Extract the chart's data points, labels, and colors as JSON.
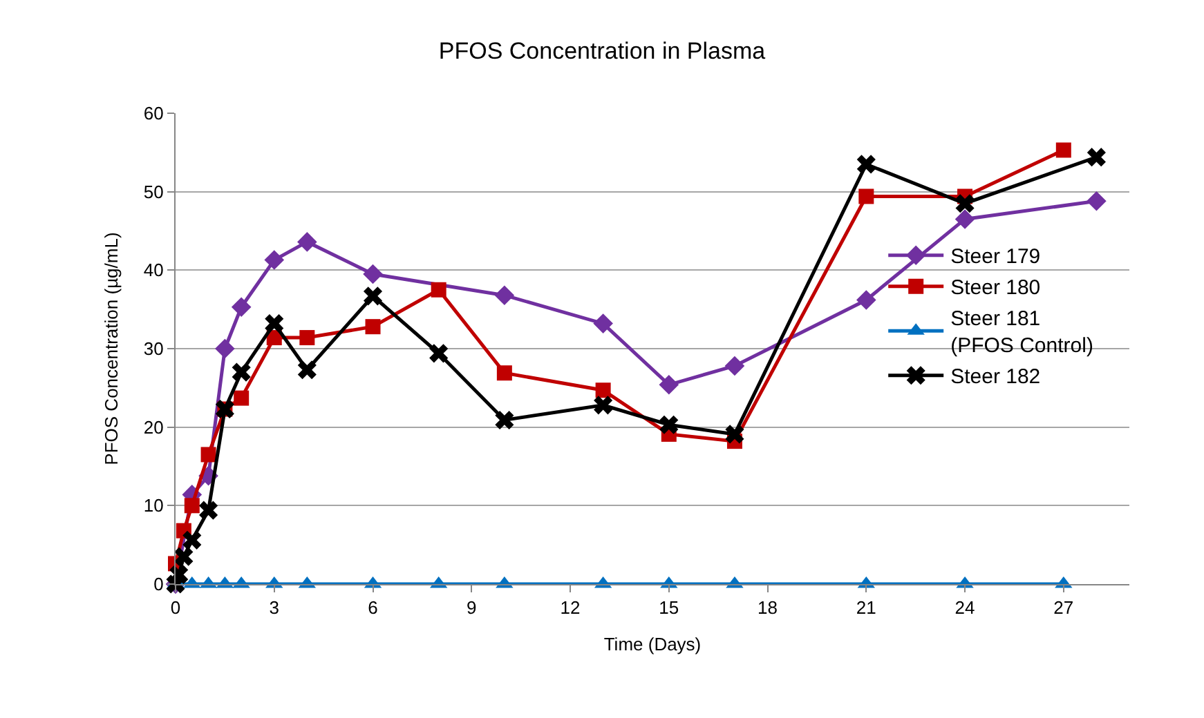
{
  "chart_data": {
    "type": "line",
    "title": "PFOS Concentration in Plasma",
    "xlabel": "Time (Days)",
    "ylabel": "PFOS Concentration (µg/mL)",
    "xlim": [
      0,
      29
    ],
    "xticks": [
      0,
      3,
      6,
      9,
      12,
      15,
      18,
      21,
      24,
      27
    ],
    "ylim": [
      0,
      60
    ],
    "yticks": [
      0,
      10,
      20,
      30,
      40,
      50,
      60
    ],
    "grid": "y",
    "legend": "right",
    "line_style": "solid",
    "series": [
      {
        "name": "Steer 179",
        "color": "#7030a0",
        "marker": "diamond",
        "x": [
          0,
          0.5,
          1,
          1.5,
          2,
          3,
          4,
          6,
          10,
          13,
          15,
          17,
          21,
          24,
          28
        ],
        "values": [
          0,
          11.4,
          13.8,
          30,
          35.3,
          41.3,
          43.6,
          39.5,
          36.8,
          33.2,
          25.4,
          27.8,
          36.2,
          46.5,
          48.8
        ]
      },
      {
        "name": "Steer 180",
        "color": "#c00000",
        "marker": "square",
        "x": [
          0,
          0.25,
          0.5,
          1,
          1.5,
          2,
          3,
          4,
          6,
          8,
          10,
          13,
          15,
          17,
          21,
          24,
          27
        ],
        "values": [
          2.6,
          6.8,
          10,
          16.5,
          22.3,
          23.7,
          31.4,
          31.4,
          32.8,
          37.5,
          26.9,
          24.7,
          19.1,
          18.2,
          49.4,
          49.4,
          55.3
        ]
      },
      {
        "name": "Steer 181\n(PFOS Control)",
        "color": "#0070c0",
        "marker": "triangle",
        "x": [
          0,
          0.5,
          1,
          1.5,
          2,
          3,
          4,
          6,
          8,
          10,
          13,
          15,
          17,
          21,
          24,
          27
        ],
        "values": [
          0,
          0,
          0,
          0,
          0,
          0,
          0,
          0,
          0,
          0,
          0,
          0,
          0,
          0,
          0,
          0
        ]
      },
      {
        "name": "Steer 182",
        "color": "#000000",
        "marker": "cross",
        "x": [
          0,
          0.1,
          0.25,
          0.5,
          1,
          1.5,
          2,
          3,
          4,
          6,
          8,
          10,
          13,
          15,
          17,
          21,
          24,
          28
        ],
        "values": [
          0,
          1.2,
          3.5,
          5.6,
          9.4,
          22.3,
          27,
          33.2,
          27.3,
          36.7,
          29.4,
          20.9,
          22.8,
          20.3,
          19.1,
          53.5,
          48.5,
          54.4
        ]
      }
    ]
  }
}
